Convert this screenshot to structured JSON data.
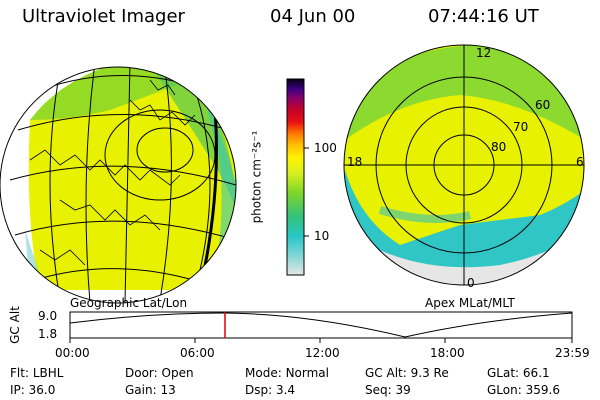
{
  "header": {
    "title": "Ultraviolet Imager",
    "date": "04 Jun 00",
    "time": "07:44:16 UT"
  },
  "panels": {
    "left_label": "Geographic Lat/Lon",
    "right_label": "Apex MLat/MLT"
  },
  "colorbar": {
    "unit_label": "photon cm⁻²s⁻¹",
    "ticks": [
      "100",
      "10"
    ]
  },
  "polar_plot": {
    "mlt_labels": {
      "top": "12",
      "left": "18",
      "right": "6",
      "bottom": "0"
    },
    "lat_labels": [
      "60",
      "70",
      "80"
    ]
  },
  "altitude_panel": {
    "ylabel": "GC Alt",
    "y_ticks": [
      "9.0",
      "1.8"
    ],
    "x_ticks": [
      "00:00",
      "06:00",
      "12:00",
      "18:00",
      "23:59"
    ],
    "marker_time": "07:44"
  },
  "status": {
    "row1": [
      {
        "label": "Flt:",
        "value": "LBHL"
      },
      {
        "label": "Door:",
        "value": "Open"
      },
      {
        "label": "Mode:",
        "value": "Normal"
      },
      {
        "label": "GC Alt:",
        "value": "9.3 Re"
      },
      {
        "label": "GLat:",
        "value": "66.1"
      }
    ],
    "row2": [
      {
        "label": "IP:",
        "value": "36.0"
      },
      {
        "label": "Gain:",
        "value": "13"
      },
      {
        "label": "Dsp:",
        "value": "3.4"
      },
      {
        "label": "Seq:",
        "value": "39"
      },
      {
        "label": "GLon:",
        "value": "359.6"
      }
    ]
  }
}
